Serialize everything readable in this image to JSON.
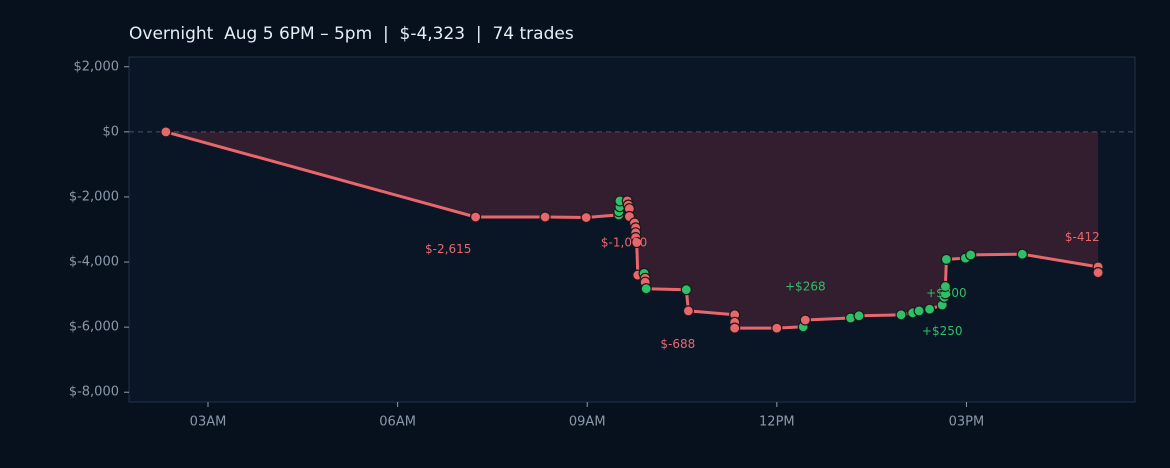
{
  "chart_data": {
    "type": "line",
    "title": "Overnight  Aug 5 6PM – 5pm  |  $-4,323  |  74 trades",
    "ylim": [
      -8300,
      2300
    ],
    "yticks": [
      {
        "value": 2000,
        "label": "$2,000"
      },
      {
        "value": 0,
        "label": "$0"
      },
      {
        "value": -2000,
        "label": "$-2,000"
      },
      {
        "value": -4000,
        "label": "$-4,000"
      },
      {
        "value": -6000,
        "label": "$-6,000"
      },
      {
        "value": -8000,
        "label": "$-8,000"
      }
    ],
    "xlim": [
      "01:45",
      "17:40"
    ],
    "xticks": [
      {
        "value": "03:00",
        "label": "03AM"
      },
      {
        "value": "06:00",
        "label": "06AM"
      },
      {
        "value": "09:00",
        "label": "09AM"
      },
      {
        "value": "12:00",
        "label": "12PM"
      },
      {
        "value": "15:00",
        "label": "03PM"
      }
    ],
    "grid": false,
    "series": [
      {
        "points": [
          {
            "x": "02:20",
            "y": 0,
            "result": "loss"
          },
          {
            "x": "07:14",
            "y": -2615,
            "result": "loss"
          },
          {
            "x": "08:20",
            "y": -2615,
            "result": "loss"
          },
          {
            "x": "08:59",
            "y": -2630,
            "result": "loss"
          },
          {
            "x": "09:30",
            "y": -2550,
            "result": "win"
          },
          {
            "x": "09:30",
            "y": -2450,
            "result": "win"
          },
          {
            "x": "09:31",
            "y": -2300,
            "result": "win"
          },
          {
            "x": "09:31",
            "y": -2120,
            "result": "win"
          },
          {
            "x": "09:38",
            "y": -2120,
            "result": "loss"
          },
          {
            "x": "09:39",
            "y": -2250,
            "result": "loss"
          },
          {
            "x": "09:40",
            "y": -2360,
            "result": "loss"
          },
          {
            "x": "09:40",
            "y": -2600,
            "result": "loss"
          },
          {
            "x": "09:45",
            "y": -2800,
            "result": "loss"
          },
          {
            "x": "09:46",
            "y": -2950,
            "result": "loss"
          },
          {
            "x": "09:46",
            "y": -3100,
            "result": "loss"
          },
          {
            "x": "09:46",
            "y": -3250,
            "result": "loss"
          },
          {
            "x": "09:47",
            "y": -3400,
            "result": "loss"
          },
          {
            "x": "09:48",
            "y": -4400,
            "result": "loss"
          },
          {
            "x": "09:54",
            "y": -4350,
            "result": "win"
          },
          {
            "x": "09:55",
            "y": -4500,
            "result": "loss"
          },
          {
            "x": "09:55",
            "y": -4620,
            "result": "loss"
          },
          {
            "x": "09:56",
            "y": -4820,
            "result": "win"
          },
          {
            "x": "10:34",
            "y": -4850,
            "result": "win"
          },
          {
            "x": "10:36",
            "y": -5500,
            "result": "loss"
          },
          {
            "x": "11:20",
            "y": -5620,
            "result": "loss"
          },
          {
            "x": "11:20",
            "y": -5850,
            "result": "loss"
          },
          {
            "x": "11:20",
            "y": -6030,
            "result": "loss"
          },
          {
            "x": "12:00",
            "y": -6030,
            "result": "loss"
          },
          {
            "x": "12:25",
            "y": -5990,
            "result": "win"
          },
          {
            "x": "12:27",
            "y": -5780,
            "result": "loss"
          },
          {
            "x": "13:10",
            "y": -5720,
            "result": "win"
          },
          {
            "x": "13:18",
            "y": -5650,
            "result": "win"
          },
          {
            "x": "13:58",
            "y": -5620,
            "result": "win"
          },
          {
            "x": "14:09",
            "y": -5560,
            "result": "win"
          },
          {
            "x": "14:15",
            "y": -5500,
            "result": "win"
          },
          {
            "x": "14:25",
            "y": -5450,
            "result": "win"
          },
          {
            "x": "14:37",
            "y": -5320,
            "result": "win"
          },
          {
            "x": "14:39",
            "y": -5080,
            "result": "win"
          },
          {
            "x": "14:40",
            "y": -4980,
            "result": "win"
          },
          {
            "x": "14:40",
            "y": -4750,
            "result": "win"
          },
          {
            "x": "14:41",
            "y": -3920,
            "result": "win"
          },
          {
            "x": "14:59",
            "y": -3880,
            "result": "win"
          },
          {
            "x": "15:04",
            "y": -3780,
            "result": "win"
          },
          {
            "x": "15:53",
            "y": -3760,
            "result": "win"
          },
          {
            "x": "17:05",
            "y": -4150,
            "result": "loss"
          },
          {
            "x": "17:05",
            "y": -4323,
            "result": "loss"
          }
        ]
      }
    ],
    "annotations": [
      {
        "x": "06:48",
        "y": -3610,
        "text": "$-2,615",
        "result": "loss"
      },
      {
        "x": "09:35",
        "y": -3420,
        "text": "$-1,000",
        "result": "loss"
      },
      {
        "x": "10:26",
        "y": -6530,
        "text": "$-688",
        "result": "loss"
      },
      {
        "x": "12:27",
        "y": -4770,
        "text": "+$268",
        "result": "win"
      },
      {
        "x": "14:41",
        "y": -4960,
        "text": "+$300",
        "result": "win"
      },
      {
        "x": "14:37",
        "y": -6140,
        "text": "+$250",
        "result": "win"
      },
      {
        "x": "16:50",
        "y": -3250,
        "text": "$-412",
        "result": "loss"
      }
    ],
    "colors": {
      "background": "#07101d",
      "plot_background": "#0a1526",
      "line": "#e8676c",
      "fill": "#3a2030",
      "win": "#2fbf68",
      "loss": "#e8676c",
      "tick_text": "#8b98aa",
      "zero_line": "#4a5568",
      "frame": "#22324a"
    }
  }
}
